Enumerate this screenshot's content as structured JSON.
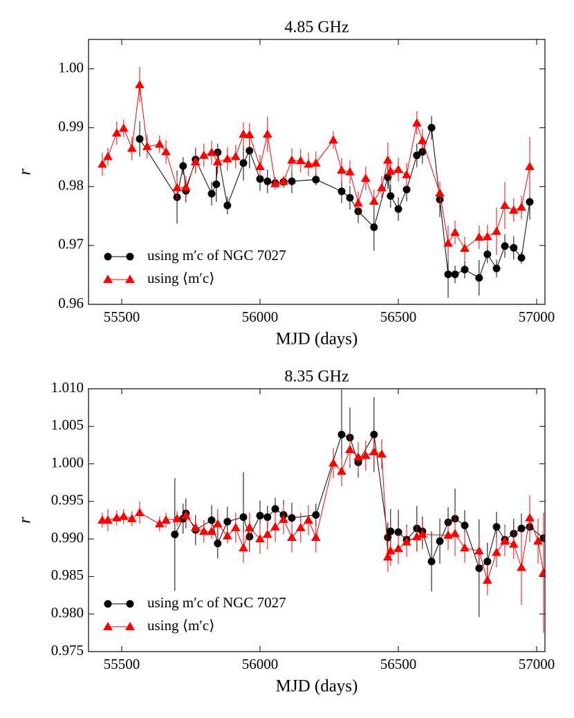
{
  "chart_data": [
    {
      "type": "line",
      "title": "4.85 GHz",
      "x_label": "MJD (days)",
      "y_label": "r",
      "xlim": [
        55380,
        57030
      ],
      "xticks": [
        55500,
        56000,
        56500,
        57000
      ],
      "ylim": [
        0.96,
        1.005
      ],
      "yticks": [
        {
          "value": 0.96,
          "label": "0.96"
        },
        {
          "value": 0.97,
          "label": "0.97"
        },
        {
          "value": 0.98,
          "label": "0.98"
        },
        {
          "value": 0.99,
          "label": "0.99"
        },
        {
          "value": 1.0,
          "label": "1.00"
        }
      ],
      "legend": "lower left",
      "series": [
        {
          "name": "using m′c of NGC 7027",
          "color": "#000000",
          "marker": "circle",
          "x": [
            55565,
            55700,
            55722,
            55732,
            55767,
            55825,
            55842,
            55847,
            55882,
            55940,
            55962,
            56000,
            56027,
            56055,
            56085,
            56115,
            56202,
            56295,
            56325,
            56355,
            56412,
            56462,
            56472,
            56500,
            56530,
            56567,
            56587,
            56620,
            56650,
            56680,
            56705,
            56740,
            56792,
            56822,
            56855,
            56885,
            56917,
            56945,
            56975
          ],
          "values": [
            0.9881,
            0.9782,
            0.9835,
            0.9793,
            0.9846,
            0.9788,
            0.9804,
            0.9858,
            0.9768,
            0.984,
            0.9861,
            0.9813,
            0.9809,
            0.9806,
            0.9808,
            0.9809,
            0.9812,
            0.9792,
            0.9781,
            0.9758,
            0.9731,
            0.9816,
            0.9784,
            0.9762,
            0.9795,
            0.9853,
            0.9859,
            0.99,
            0.9778,
            0.9651,
            0.9651,
            0.9659,
            0.9645,
            0.9685,
            0.9661,
            0.9699,
            0.9696,
            0.9679,
            0.9774
          ],
          "errors": [
            0.003,
            0.0045,
            0.0015,
            0.002,
            0.002,
            0.002,
            0.003,
            0.0015,
            0.0015,
            0.003,
            0.003,
            0.002,
            0.002,
            0.001,
            0.001,
            0.002,
            0.001,
            0.002,
            0.002,
            0.002,
            0.004,
            0.002,
            0.002,
            0.002,
            0.002,
            0.002,
            0.002,
            0.002,
            0.003,
            0.004,
            0.0015,
            0.0015,
            0.003,
            0.0015,
            0.0015,
            0.002,
            0.002,
            0.001,
            0.003
          ]
        },
        {
          "name": "using ⟨m′c⟩",
          "color": "#ff0000",
          "marker": "triangle",
          "x": [
            55430,
            55450,
            55482,
            55507,
            55537,
            55565,
            55592,
            55637,
            55660,
            55700,
            55732,
            55767,
            55797,
            55825,
            55847,
            55882,
            55912,
            55940,
            55962,
            56000,
            56027,
            56055,
            56085,
            56115,
            56147,
            56175,
            56202,
            56265,
            56295,
            56325,
            56355,
            56382,
            56412,
            56440,
            56462,
            56472,
            56500,
            56530,
            56567,
            56587,
            56650,
            56680,
            56705,
            56740,
            56792,
            56822,
            56855,
            56885,
            56917,
            56945,
            56975
          ],
          "values": [
            0.9838,
            0.9851,
            0.9891,
            0.9899,
            0.9865,
            0.9973,
            0.9868,
            0.9872,
            0.9859,
            0.9798,
            0.9799,
            0.9842,
            0.9853,
            0.9858,
            0.9842,
            0.9847,
            0.9851,
            0.9889,
            0.9888,
            0.9834,
            0.9889,
            0.9805,
            0.9809,
            0.9845,
            0.9844,
            0.9838,
            0.984,
            0.9879,
            0.9828,
            0.9825,
            0.9772,
            0.9814,
            0.9775,
            0.9798,
            0.9845,
            0.9826,
            0.9829,
            0.982,
            0.9908,
            0.9878,
            0.9789,
            0.9704,
            0.9722,
            0.9695,
            0.9714,
            0.9715,
            0.9724,
            0.9768,
            0.976,
            0.9765,
            0.9834
          ],
          "errors": [
            0.002,
            0.0015,
            0.002,
            0.0015,
            0.002,
            0.003,
            0.002,
            0.0015,
            0.002,
            0.002,
            0.002,
            0.002,
            0.002,
            0.002,
            0.002,
            0.002,
            0.002,
            0.002,
            0.002,
            0.002,
            0.003,
            0.001,
            0.001,
            0.002,
            0.002,
            0.002,
            0.002,
            0.0015,
            0.002,
            0.002,
            0.002,
            0.002,
            0.002,
            0.002,
            0.003,
            0.002,
            0.002,
            0.002,
            0.002,
            0.002,
            0.002,
            0.003,
            0.002,
            0.002,
            0.002,
            0.002,
            0.004,
            0.004,
            0.002,
            0.002,
            0.005
          ]
        }
      ]
    },
    {
      "type": "line",
      "title": "8.35 GHz",
      "x_label": "MJD (days)",
      "y_label": "r",
      "xlim": [
        55380,
        57030
      ],
      "xticks": [
        55500,
        56000,
        56500,
        57000
      ],
      "ylim": [
        0.975,
        1.01
      ],
      "yticks": [
        {
          "value": 0.975,
          "label": "0.975"
        },
        {
          "value": 0.98,
          "label": "0.980"
        },
        {
          "value": 0.985,
          "label": "0.985"
        },
        {
          "value": 0.99,
          "label": "0.990"
        },
        {
          "value": 0.995,
          "label": "0.995"
        },
        {
          "value": 1.0,
          "label": "1.000"
        },
        {
          "value": 1.005,
          "label": "1.005"
        },
        {
          "value": 1.01,
          "label": "1.010"
        }
      ],
      "legend": "lower left",
      "series": [
        {
          "name": "using m′c of NGC 7027",
          "color": "#000000",
          "marker": "circle",
          "x": [
            55692,
            55722,
            55732,
            55767,
            55825,
            55847,
            55882,
            55940,
            55962,
            56000,
            56027,
            56055,
            56085,
            56115,
            56202,
            56295,
            56325,
            56355,
            56412,
            56462,
            56472,
            56500,
            56530,
            56567,
            56587,
            56620,
            56650,
            56680,
            56705,
            56740,
            56792,
            56822,
            56855,
            56885,
            56917,
            56945,
            56975,
            57025
          ],
          "values": [
            0.9906,
            0.9927,
            0.9934,
            0.9912,
            0.9925,
            0.9894,
            0.9923,
            0.9929,
            0.9903,
            0.9931,
            0.9929,
            0.994,
            0.9932,
            0.9928,
            0.9932,
            1.0039,
            1.0035,
            1.0002,
            1.0039,
            0.9902,
            0.991,
            0.9909,
            0.9899,
            0.9914,
            0.991,
            0.987,
            0.9897,
            0.9922,
            0.9927,
            0.9918,
            0.9861,
            0.987,
            0.9916,
            0.9899,
            0.9907,
            0.9914,
            0.9916,
            0.9901
          ],
          "errors": [
            0.0075,
            0.002,
            0.002,
            0.002,
            0.002,
            0.002,
            0.002,
            0.006,
            0.002,
            0.002,
            0.0015,
            0.0015,
            0.002,
            0.002,
            0.0015,
            0.006,
            0.004,
            0.002,
            0.005,
            0.002,
            0.003,
            0.003,
            0.002,
            0.003,
            0.002,
            0.004,
            0.003,
            0.002,
            0.004,
            0.002,
            0.0065,
            0.0025,
            0.002,
            0.002,
            0.002,
            0.002,
            0.002,
            0.001
          ]
        },
        {
          "name": "using ⟨m′c⟩",
          "color": "#ff0000",
          "marker": "triangle",
          "x": [
            55430,
            55450,
            55482,
            55507,
            55537,
            55565,
            55637,
            55660,
            55700,
            55732,
            55767,
            55797,
            55825,
            55847,
            55882,
            55912,
            55940,
            55962,
            56000,
            56027,
            56055,
            56085,
            56115,
            56147,
            56175,
            56202,
            56265,
            56295,
            56325,
            56355,
            56382,
            56412,
            56440,
            56462,
            56472,
            56500,
            56530,
            56567,
            56587,
            56680,
            56705,
            56740,
            56792,
            56822,
            56855,
            56885,
            56917,
            56945,
            56975,
            57005,
            57025
          ],
          "values": [
            0.9925,
            0.9925,
            0.9928,
            0.993,
            0.9927,
            0.9935,
            0.992,
            0.9925,
            0.9927,
            0.9931,
            0.9915,
            0.991,
            0.991,
            0.992,
            0.9904,
            0.9915,
            0.9888,
            0.9915,
            0.99,
            0.9906,
            0.9916,
            0.9926,
            0.9902,
            0.9915,
            0.9925,
            0.9902,
            1.0001,
            0.999,
            1.0019,
            1.0009,
            1.0011,
            1.0016,
            1.0013,
            0.9876,
            0.9884,
            0.9887,
            0.9896,
            0.9903,
            0.9906,
            0.9905,
            0.9907,
            0.9888,
            0.9884,
            0.9845,
            0.9882,
            0.9897,
            0.9893,
            0.9862,
            0.9928,
            0.9897,
            0.9855
          ],
          "errors": [
            0.001,
            0.0015,
            0.001,
            0.001,
            0.001,
            0.0015,
            0.001,
            0.001,
            0.001,
            0.001,
            0.001,
            0.0015,
            0.001,
            0.002,
            0.001,
            0.002,
            0.002,
            0.002,
            0.002,
            0.002,
            0.002,
            0.002,
            0.002,
            0.002,
            0.002,
            0.002,
            0.002,
            0.002,
            0.002,
            0.002,
            0.002,
            0.002,
            0.002,
            0.002,
            0.002,
            0.002,
            0.002,
            0.002,
            0.002,
            0.002,
            0.003,
            0.002,
            0.002,
            0.002,
            0.002,
            0.002,
            0.002,
            0.005,
            0.003,
            0.003,
            0.008
          ]
        }
      ]
    }
  ]
}
